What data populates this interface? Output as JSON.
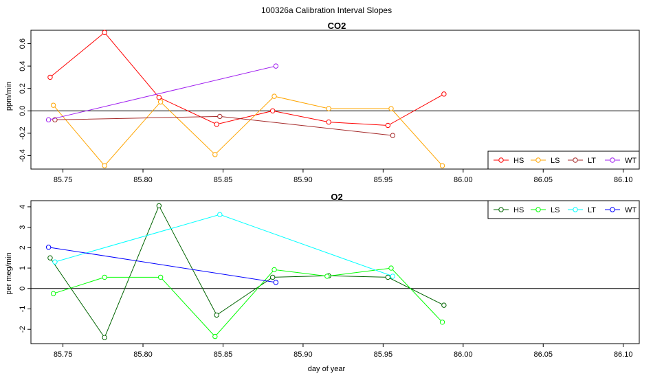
{
  "figure_title": "100326a   Calibration Interval Slopes",
  "colors": {
    "co2": {
      "HS": "#ff0000",
      "LS": "#ffa500",
      "LT": "#a52a2a",
      "WT": "#a020f0"
    },
    "o2": {
      "HS": "#006400",
      "LS": "#00ff00",
      "LT": "#00ffff",
      "WT": "#0000ff"
    }
  },
  "chart_data": [
    {
      "type": "line",
      "title": "CO2",
      "xlabel": "",
      "ylabel": "ppm/min",
      "xlim": [
        85.73,
        86.11
      ],
      "ylim": [
        -0.52,
        0.72
      ],
      "xticks": [
        85.75,
        85.8,
        85.85,
        85.9,
        85.95,
        86.0,
        86.05,
        86.1
      ],
      "xtick_labels": [
        "85.75",
        "85.80",
        "85.85",
        "85.90",
        "85.95",
        "86.00",
        "86.05",
        "86.10"
      ],
      "yticks": [
        -0.4,
        -0.2,
        0.0,
        0.2,
        0.4,
        0.6
      ],
      "ytick_labels": [
        "-0.4",
        "-0.2",
        "0.0",
        "0.2",
        "0.4",
        "0.6"
      ],
      "hline": 0,
      "legend": [
        "HS",
        "LS",
        "LT",
        "WT"
      ],
      "legend_position": "bottom-right",
      "series": [
        {
          "name": "HS",
          "x": [
            85.742,
            85.776,
            85.81,
            85.846,
            85.881,
            85.916,
            85.953,
            85.988
          ],
          "y": [
            0.3,
            0.7,
            0.12,
            -0.12,
            0.0,
            -0.1,
            -0.13,
            0.15
          ]
        },
        {
          "name": "LS",
          "x": [
            85.744,
            85.776,
            85.811,
            85.845,
            85.882,
            85.916,
            85.955,
            85.987
          ],
          "y": [
            0.05,
            -0.49,
            0.08,
            -0.39,
            0.13,
            0.02,
            0.02,
            -0.49
          ]
        },
        {
          "name": "LT",
          "x": [
            85.745,
            85.848,
            85.956
          ],
          "y": [
            -0.08,
            -0.05,
            -0.22
          ]
        },
        {
          "name": "WT",
          "x": [
            85.741,
            85.883
          ],
          "y": [
            -0.08,
            0.4
          ]
        }
      ]
    },
    {
      "type": "line",
      "title": "O2",
      "xlabel": "day of year",
      "ylabel": "per meg/min",
      "xlim": [
        85.73,
        86.11
      ],
      "ylim": [
        -2.7,
        4.3
      ],
      "xticks": [
        85.75,
        85.8,
        85.85,
        85.9,
        85.95,
        86.0,
        86.05,
        86.1
      ],
      "xtick_labels": [
        "85.75",
        "85.80",
        "85.85",
        "85.90",
        "85.95",
        "86.00",
        "86.05",
        "86.10"
      ],
      "yticks": [
        -2,
        -1,
        0,
        1,
        2,
        3,
        4
      ],
      "ytick_labels": [
        "-2",
        "-1",
        "0",
        "1",
        "2",
        "3",
        "4"
      ],
      "hline": 0,
      "legend": [
        "HS",
        "LS",
        "LT",
        "WT"
      ],
      "legend_position": "top-right",
      "series": [
        {
          "name": "HS",
          "x": [
            85.742,
            85.776,
            85.81,
            85.846,
            85.881,
            85.916,
            85.953,
            85.988
          ],
          "y": [
            1.5,
            -2.4,
            4.05,
            -1.3,
            0.55,
            0.62,
            0.55,
            -0.82
          ]
        },
        {
          "name": "LS",
          "x": [
            85.744,
            85.776,
            85.811,
            85.845,
            85.882,
            85.915,
            85.955,
            85.987
          ],
          "y": [
            -0.25,
            0.55,
            0.55,
            -2.35,
            0.92,
            0.6,
            1.0,
            -1.65
          ]
        },
        {
          "name": "LT",
          "x": [
            85.745,
            85.848,
            85.956
          ],
          "y": [
            1.3,
            3.62,
            0.6
          ]
        },
        {
          "name": "WT",
          "x": [
            85.741,
            85.883
          ],
          "y": [
            2.02,
            0.3
          ]
        }
      ]
    }
  ]
}
